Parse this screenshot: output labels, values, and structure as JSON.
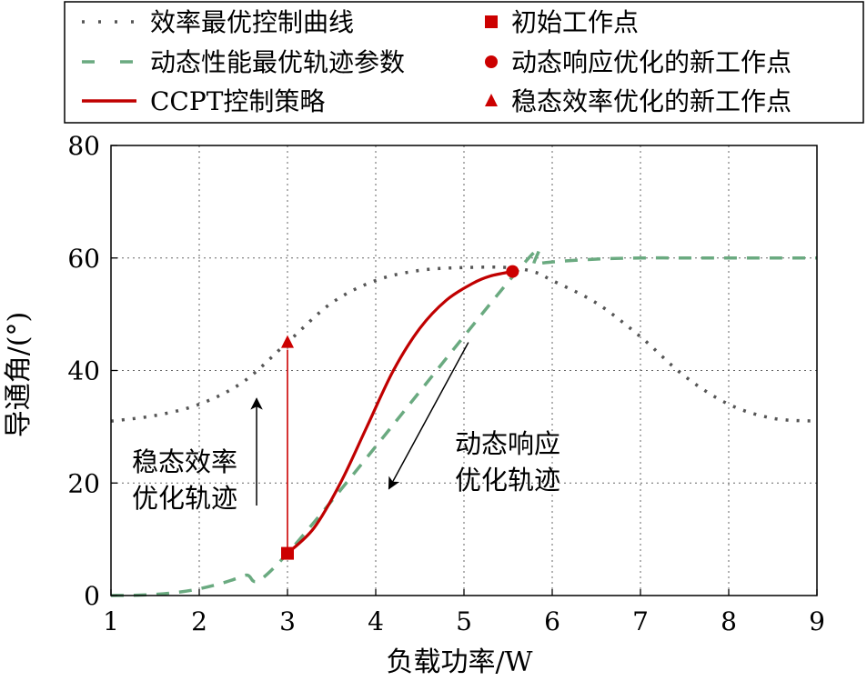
{
  "chart_data": {
    "type": "line",
    "xlabel": "负载功率/W",
    "ylabel": "导通角/(°)",
    "xlim": [
      1,
      9
    ],
    "ylim": [
      0,
      80
    ],
    "xticks": [
      1,
      2,
      3,
      4,
      5,
      6,
      7,
      8,
      9
    ],
    "yticks": [
      0,
      20,
      40,
      60,
      80
    ],
    "grid": true,
    "legend_position": "top",
    "series": [
      {
        "name": "效率最优控制曲线",
        "style": "dotted",
        "color": "#555555",
        "x": [
          1.0,
          1.5,
          2.0,
          2.5,
          3.0,
          3.5,
          4.0,
          4.5,
          5.0,
          5.5,
          5.8,
          6.0,
          6.5,
          7.0,
          7.5,
          8.0,
          8.5,
          9.0
        ],
        "y": [
          31,
          32,
          34,
          38,
          45,
          52,
          56,
          57.8,
          58.3,
          58.3,
          57.5,
          56,
          52,
          46,
          39,
          34,
          31.5,
          31
        ]
      },
      {
        "name": "动态性能最优轨迹参数",
        "style": "dashed",
        "color": "#6aaa80",
        "x": [
          1.0,
          1.5,
          2.0,
          2.5,
          3.0,
          5.6,
          5.8,
          6.0,
          6.5,
          7.0,
          7.5,
          8.0,
          8.5,
          9.0
        ],
        "y": [
          0,
          0.2,
          1.2,
          3.5,
          7.5,
          57.6,
          58.8,
          59.3,
          59.8,
          60,
          60,
          60,
          60,
          60
        ]
      },
      {
        "name": "CCPT控制策略",
        "style": "solid",
        "color": "#c00000",
        "x": [
          3.0,
          3.3,
          3.6,
          3.9,
          4.2,
          4.5,
          4.8,
          5.1,
          5.3,
          5.55
        ],
        "y": [
          7.5,
          12,
          20,
          30,
          40,
          47.5,
          52.5,
          55.5,
          56.8,
          57.6
        ]
      }
    ],
    "points": [
      {
        "name": "初始工作点",
        "marker": "square",
        "color": "#cc0000",
        "x": 3.0,
        "y": 7.5
      },
      {
        "name": "动态响应优化的新工作点",
        "marker": "circle",
        "color": "#cc0000",
        "x": 5.55,
        "y": 57.6
      },
      {
        "name": "稳态效率优化的新工作点",
        "marker": "triangle",
        "color": "#cc0000",
        "x": 3.0,
        "y": 45
      }
    ],
    "steady_line": {
      "x": 3.0,
      "y_from": 7.5,
      "y_to": 45,
      "color": "#cc0000"
    },
    "annotations": [
      {
        "lines": [
          "稳态效率",
          "优化轨迹"
        ],
        "arrow_from": [
          2.65,
          16
        ],
        "arrow_to": [
          2.65,
          35
        ]
      },
      {
        "lines": [
          "动态响应",
          "优化轨迹"
        ],
        "arrow_from": [
          5.05,
          45
        ],
        "arrow_to": [
          4.15,
          19
        ]
      }
    ],
    "legend": {
      "left": [
        {
          "label": "效率最优控制曲线",
          "kind": "dotted",
          "color": "#555555"
        },
        {
          "label": "动态性能最优轨迹参数",
          "kind": "dashed",
          "color": "#6aaa80"
        },
        {
          "label": "CCPT控制策略",
          "kind": "solid",
          "color": "#c00000"
        }
      ],
      "right": [
        {
          "label": "初始工作点",
          "kind": "square",
          "color": "#cc0000"
        },
        {
          "label": "动态响应优化的新工作点",
          "kind": "circle",
          "color": "#cc0000"
        },
        {
          "label": "稳态效率优化的新工作点",
          "kind": "triangle",
          "color": "#cc0000"
        }
      ]
    }
  }
}
